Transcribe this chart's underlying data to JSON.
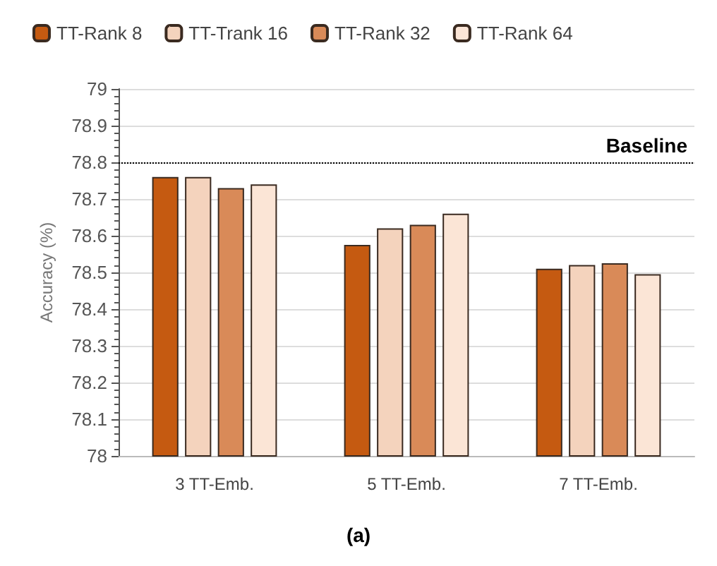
{
  "chart_data": {
    "type": "bar",
    "title": "(a)",
    "ylabel": "Accuracy (%)",
    "categories": [
      "3 TT-Emb.",
      "5 TT-Emb.",
      "7 TT-Emb."
    ],
    "series": [
      {
        "name": "TT-Rank 8",
        "color": "#c55a11",
        "values": [
          78.76,
          78.575,
          78.51
        ]
      },
      {
        "name": "TT-Trank 16",
        "color": "#f4d3bd",
        "values": [
          78.76,
          78.62,
          78.52
        ]
      },
      {
        "name": "TT-Rank 32",
        "color": "#d98a58",
        "values": [
          78.73,
          78.63,
          78.525
        ]
      },
      {
        "name": "TT-Rank 64",
        "color": "#fbe5d6",
        "values": [
          78.74,
          78.66,
          78.495
        ]
      }
    ],
    "ylim": [
      78,
      79
    ],
    "yticks": [
      78,
      78.1,
      78.2,
      78.3,
      78.4,
      78.5,
      78.6,
      78.7,
      78.8,
      78.9,
      79
    ],
    "ref_lines": [
      {
        "axis": "y",
        "value": 78.8,
        "label": "Baseline",
        "line_style": "dotted"
      }
    ],
    "grid": "y",
    "legend": "top left"
  }
}
